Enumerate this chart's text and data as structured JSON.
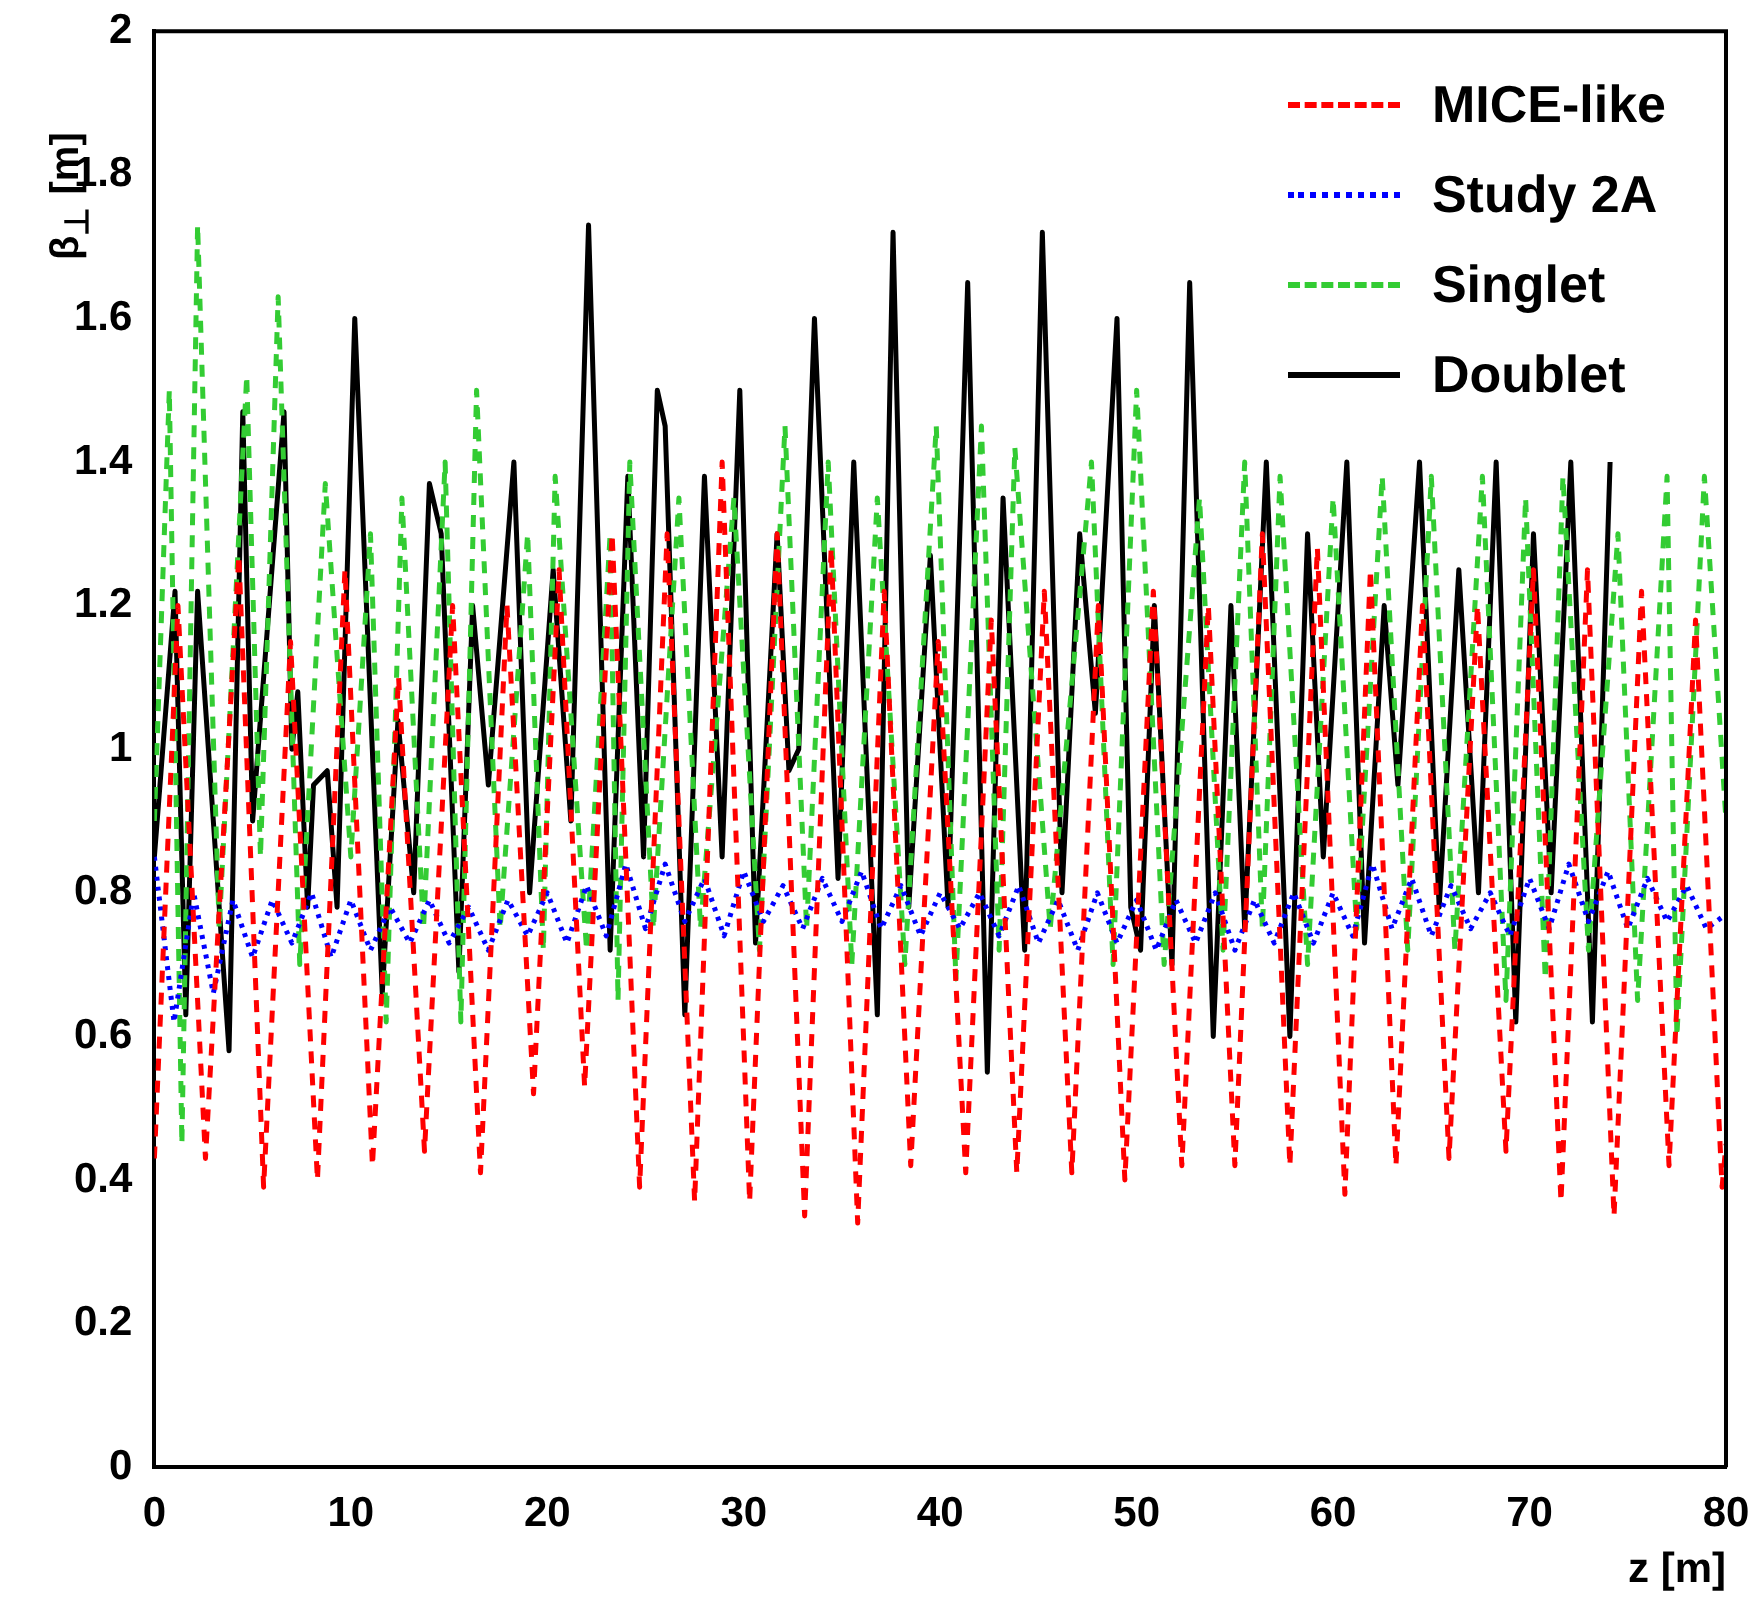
{
  "chart_data": {
    "type": "line",
    "xlabel": "z [m]",
    "ylabel": "β$_{⊥}$ [m]",
    "xlim": [
      0,
      80
    ],
    "xticks": [
      0,
      10,
      20,
      30,
      40,
      50,
      60,
      70,
      80
    ],
    "ylim": [
      0,
      2
    ],
    "yticks": [
      0,
      0.2,
      0.4,
      0.6,
      0.8,
      1,
      1.2,
      1.4,
      1.6,
      1.8,
      2
    ],
    "grid": false,
    "legend": "top right",
    "marker": "none",
    "series": [
      {
        "name": "MICE-like",
        "color": "#ff0000",
        "line_style": "dashed",
        "x": [
          0,
          1.2,
          2.6,
          4.3,
          5.56,
          6.93,
          8.3,
          9.7,
          11.1,
          12.43,
          13.75,
          15.18,
          16.6,
          17.95,
          19.3,
          20.6,
          21.9,
          23.3,
          24.7,
          26.1,
          27.5,
          28.9,
          30.3,
          31.7,
          33.1,
          34.45,
          35.8,
          37.15,
          38.5,
          39.9,
          41.3,
          42.6,
          43.9,
          45.3,
          46.7,
          48.05,
          49.4,
          50.85,
          52.3,
          53.65,
          55.0,
          56.4,
          57.8,
          59.2,
          60.6,
          61.9,
          63.2,
          64.55,
          65.9,
          67.35,
          68.8,
          70.2,
          71.6,
          72.95,
          74.3,
          75.7,
          77.1,
          78.45,
          79.8,
          80
        ],
        "values": [
          0.43,
          1.2,
          0.43,
          1.27,
          0.39,
          1.15,
          0.4,
          1.25,
          0.42,
          1.1,
          0.44,
          1.2,
          0.41,
          1.2,
          0.52,
          1.25,
          0.53,
          1.3,
          0.39,
          1.3,
          0.37,
          1.4,
          0.37,
          1.3,
          0.35,
          1.28,
          0.34,
          1.22,
          0.42,
          1.15,
          0.41,
          1.18,
          0.41,
          1.22,
          0.41,
          1.2,
          0.4,
          1.22,
          0.42,
          1.2,
          0.42,
          1.3,
          0.42,
          1.28,
          0.38,
          1.25,
          0.42,
          1.2,
          0.43,
          1.2,
          0.44,
          1.25,
          0.37,
          1.25,
          0.35,
          1.22,
          0.42,
          1.18,
          0.39,
          0.45
        ]
      },
      {
        "name": "Study 2A",
        "color": "#0000ff",
        "line_style": "dotted",
        "x": [
          0,
          1,
          2,
          3,
          4,
          5,
          6,
          7,
          8,
          9,
          10,
          11,
          12,
          13,
          14,
          15,
          16,
          17,
          18,
          19,
          20,
          21,
          22,
          23,
          24,
          25,
          26,
          27,
          28,
          29,
          30,
          31,
          32,
          33,
          34,
          35,
          36,
          37,
          38,
          39,
          40,
          41,
          42,
          43,
          44,
          45,
          46,
          47,
          48,
          49,
          50,
          51,
          52,
          53,
          54,
          55,
          56,
          57,
          58,
          59,
          60,
          61,
          62,
          63,
          64,
          65,
          66,
          67,
          68,
          69,
          70,
          71,
          72,
          73,
          74,
          75,
          76,
          77,
          78,
          79,
          80
        ],
        "values": [
          0.85,
          0.62,
          0.8,
          0.66,
          0.79,
          0.71,
          0.79,
          0.73,
          0.8,
          0.71,
          0.79,
          0.72,
          0.78,
          0.73,
          0.79,
          0.73,
          0.78,
          0.72,
          0.79,
          0.74,
          0.8,
          0.73,
          0.81,
          0.74,
          0.84,
          0.75,
          0.84,
          0.76,
          0.82,
          0.74,
          0.83,
          0.76,
          0.81,
          0.75,
          0.82,
          0.76,
          0.83,
          0.75,
          0.81,
          0.74,
          0.8,
          0.75,
          0.8,
          0.74,
          0.81,
          0.73,
          0.79,
          0.72,
          0.8,
          0.73,
          0.79,
          0.72,
          0.79,
          0.73,
          0.8,
          0.72,
          0.79,
          0.73,
          0.8,
          0.73,
          0.8,
          0.74,
          0.84,
          0.75,
          0.82,
          0.74,
          0.81,
          0.75,
          0.8,
          0.74,
          0.82,
          0.75,
          0.84,
          0.76,
          0.83,
          0.75,
          0.82,
          0.76,
          0.81,
          0.75,
          0.77
        ]
      },
      {
        "name": "Singlet",
        "color": "#33cc33",
        "line_style": "dashed",
        "x": [
          0,
          0.76,
          1.4,
          2.2,
          3.3,
          4.7,
          5.4,
          6.3,
          7.4,
          8.7,
          10.0,
          11.0,
          11.8,
          12.6,
          13.7,
          14.8,
          15.6,
          16.4,
          17.6,
          19.0,
          19.8,
          20.4,
          22.0,
          23.2,
          23.6,
          24.2,
          25.4,
          26.7,
          27.8,
          29.5,
          30.8,
          32.1,
          33.2,
          34.3,
          35.5,
          36.8,
          38.2,
          39.8,
          40.8,
          42.1,
          43.0,
          43.8,
          45.6,
          47.7,
          48.8,
          50.0,
          51.4,
          53.2,
          54.4,
          55.5,
          56.4,
          57.3,
          58.7,
          60.0,
          61.2,
          62.5,
          63.8,
          65.0,
          66.2,
          67.6,
          68.8,
          69.8,
          70.8,
          71.7,
          73.0,
          74.5,
          75.5,
          77.0,
          77.5,
          78.9,
          80
        ],
        "values": [
          0.9,
          1.5,
          0.45,
          1.73,
          0.75,
          1.52,
          0.85,
          1.63,
          0.7,
          1.37,
          0.85,
          1.3,
          0.62,
          1.35,
          0.75,
          1.4,
          0.62,
          1.5,
          0.75,
          1.3,
          0.72,
          1.38,
          0.72,
          1.3,
          0.65,
          1.4,
          0.75,
          1.35,
          0.75,
          1.35,
          0.72,
          1.45,
          0.75,
          1.4,
          0.7,
          1.35,
          0.7,
          1.45,
          0.68,
          1.45,
          0.72,
          1.42,
          0.75,
          1.4,
          0.7,
          1.5,
          0.7,
          1.35,
          0.72,
          1.4,
          0.75,
          1.38,
          0.7,
          1.35,
          0.75,
          1.38,
          0.72,
          1.38,
          0.72,
          1.38,
          0.65,
          1.35,
          0.68,
          1.38,
          0.72,
          1.3,
          0.65,
          1.38,
          0.6,
          1.38,
          0.9
        ]
      },
      {
        "name": "Doublet",
        "color": "#000000",
        "line_style": "solid",
        "x": [
          0,
          1.05,
          1.6,
          2.2,
          3.8,
          4.5,
          5.0,
          6.6,
          7.0,
          7.3,
          7.8,
          8.1,
          8.8,
          9.3,
          10.2,
          11.6,
          12.4,
          13.2,
          14.0,
          14.6,
          15.5,
          16.2,
          17.0,
          18.3,
          19.1,
          20.3,
          21.2,
          22.1,
          23.2,
          24.1,
          24.9,
          25.6,
          26.0,
          27.0,
          28.0,
          28.9,
          29.8,
          30.6,
          31.7,
          32.3,
          32.8,
          33.6,
          34.8,
          35.6,
          36.8,
          37.6,
          38.4,
          39.5,
          40.4,
          41.4,
          42.4,
          43.2,
          44.3,
          45.2,
          46.2,
          47.1,
          47.9,
          49.0,
          49.7,
          50.2,
          50.9,
          51.8,
          52.7,
          53.9,
          54.8,
          55.5,
          56.6,
          57.8,
          58.7,
          59.5,
          60.7,
          61.6,
          62.6,
          63.3,
          64.4,
          65.4,
          66.4,
          67.4,
          68.3,
          69.3,
          70.2,
          71.1,
          72.1,
          73.2,
          74.1
        ],
        "values": [
          0.85,
          1.22,
          0.63,
          1.22,
          0.58,
          1.47,
          0.9,
          1.47,
          1.0,
          1.08,
          0.78,
          0.95,
          0.97,
          0.78,
          1.6,
          0.66,
          1.04,
          0.8,
          1.37,
          1.3,
          0.69,
          1.2,
          0.95,
          1.4,
          0.8,
          1.25,
          0.9,
          1.73,
          0.72,
          1.38,
          0.85,
          1.5,
          1.45,
          0.63,
          1.38,
          0.85,
          1.5,
          0.73,
          1.3,
          0.97,
          1.0,
          1.6,
          0.82,
          1.4,
          0.63,
          1.72,
          0.78,
          1.27,
          0.78,
          1.65,
          0.55,
          1.35,
          0.72,
          1.72,
          0.8,
          1.3,
          1.05,
          1.6,
          0.78,
          0.72,
          1.2,
          0.7,
          1.65,
          0.6,
          1.2,
          0.75,
          1.4,
          0.6,
          1.3,
          0.85,
          1.4,
          0.73,
          1.2,
          0.95,
          1.4,
          0.78,
          1.25,
          0.8,
          1.4,
          0.62,
          1.3,
          0.8,
          1.4,
          0.62,
          1.4
        ]
      }
    ]
  }
}
